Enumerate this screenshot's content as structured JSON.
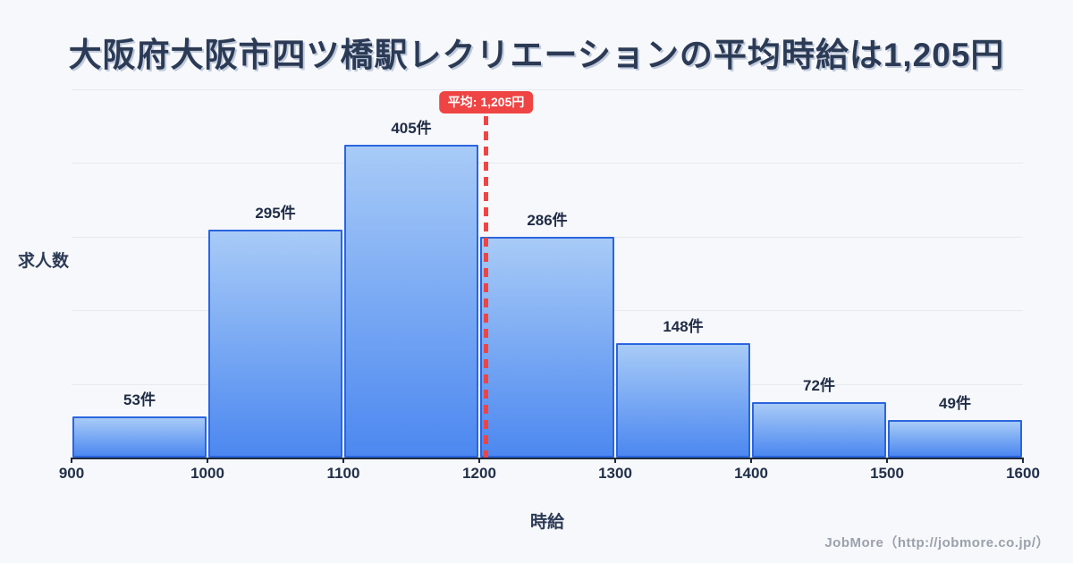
{
  "title": {
    "text": "大阪府大阪市四ツ橋駅レクリエーションの平均時給は1,205円"
  },
  "chart_data": {
    "type": "bar",
    "subtype": "histogram",
    "title": "大阪府大阪市四ツ橋駅レクリエーションの平均時給は1,205円",
    "bin_edges": [
      900,
      1000,
      1100,
      1200,
      1300,
      1400,
      1500,
      1600
    ],
    "categories": [
      "900-1000",
      "1000-1100",
      "1100-1200",
      "1200-1300",
      "1300-1400",
      "1400-1500",
      "1500-1600"
    ],
    "values": [
      53,
      295,
      405,
      286,
      148,
      72,
      49
    ],
    "bar_labels": [
      "53件",
      "295件",
      "405件",
      "286件",
      "148件",
      "72件",
      "49件"
    ],
    "x_tick_labels": [
      "900",
      "1000",
      "1100",
      "1200",
      "1300",
      "1400",
      "1500",
      "1600"
    ],
    "xlabel": "時給",
    "ylabel": "求人数",
    "xlim": [
      900,
      1600
    ],
    "ylim": [
      0,
      477
    ],
    "grid": true,
    "gridline_count": 5,
    "legend": "none",
    "average_line": {
      "x": 1205,
      "label": "平均: 1,205円"
    }
  },
  "footer": {
    "text": "JobMore（http://jobmore.co.jp/）"
  },
  "colors": {
    "background": "#f7f8fb",
    "title_text": "#2b3a55",
    "bar_fill_top": "#a8cbf7",
    "bar_fill_bottom": "#4c88f0",
    "bar_border": "#2a65e0",
    "average_red": "#ef4444",
    "axis_line": "#1e2a3a",
    "tick_text": "#22304a",
    "gridline": "#e6e9f0",
    "footer_text": "#9aa1ac"
  }
}
